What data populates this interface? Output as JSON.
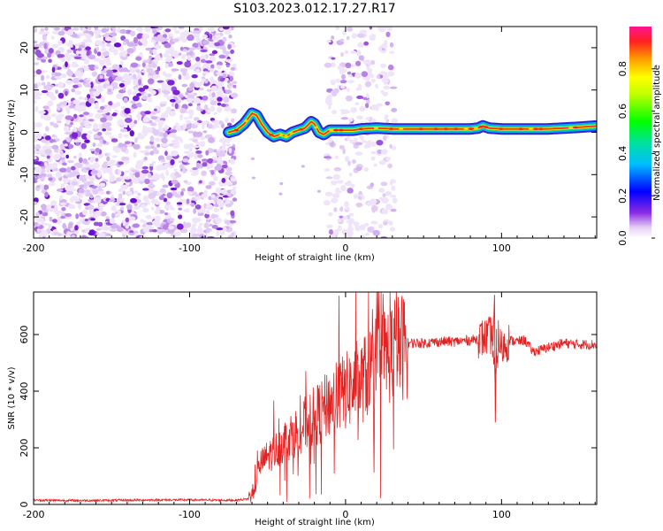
{
  "title": "S103.2023.012.17.27.R17",
  "chart_data": [
    {
      "type": "heatmap",
      "name": "spectrogram",
      "xlabel": "Height of straight line (km)",
      "ylabel": "Frequency (Hz)",
      "xlim": [
        -200,
        161
      ],
      "ylim": [
        -25,
        25
      ],
      "xticks": [
        -200,
        -100,
        0,
        100
      ],
      "yticks": [
        -20,
        -10,
        0,
        10,
        20
      ],
      "colorbar": {
        "label": "Normalized spectral amplitude",
        "range": [
          0,
          1
        ],
        "ticks": [
          0.0,
          0.2,
          0.4,
          0.6,
          0.8
        ],
        "tick_labels": [
          "0.0",
          "0.2",
          "0.4",
          "0.6",
          "0.8"
        ]
      },
      "noise_regions": [
        {
          "x_range": [
            -200,
            -71
          ],
          "density": "dense"
        },
        {
          "x_range": [
            -12,
            32
          ],
          "density": "moderate"
        }
      ],
      "signal_trace": {
        "x": [
          -75,
          -70,
          -65,
          -60,
          -57,
          -54,
          -50,
          -46,
          -42,
          -38,
          -34,
          -30,
          -26,
          -22,
          -20,
          -17,
          -14,
          -10,
          -5,
          0,
          5,
          10,
          20,
          30,
          40,
          50,
          60,
          70,
          80,
          85,
          88,
          92,
          100,
          110,
          120,
          130,
          140,
          150,
          161
        ],
        "y": [
          0,
          0.5,
          2,
          4.5,
          4,
          2,
          0,
          -1,
          -0.5,
          -1,
          0,
          0.5,
          1,
          2.5,
          2,
          0,
          -0.5,
          0.5,
          0.5,
          0.5,
          0.5,
          0.8,
          1,
          0.8,
          0.8,
          0.8,
          0.8,
          0.8,
          0.8,
          1,
          1.5,
          1,
          0.8,
          0.8,
          0.8,
          0.8,
          1,
          1.2,
          1.5
        ]
      }
    },
    {
      "type": "line",
      "name": "snr",
      "xlabel": "Height of straight line (km)",
      "ylabel": "SNR (10 * v/v)",
      "xlim": [
        -200,
        161
      ],
      "ylim": [
        0,
        750
      ],
      "xticks": [
        -200,
        -100,
        0,
        100
      ],
      "yticks": [
        0,
        200,
        400,
        600
      ],
      "color": "#e32222",
      "series": [
        {
          "name": "SNR",
          "x": [
            -200,
            -180,
            -160,
            -140,
            -120,
            -100,
            -80,
            -70,
            -62,
            -58,
            -55,
            -50,
            -45,
            -40,
            -35,
            -30,
            -25,
            -20,
            -15,
            -10,
            -5,
            0,
            5,
            10,
            15,
            20,
            25,
            30,
            35,
            40,
            50,
            60,
            70,
            80,
            90,
            94,
            96,
            98,
            100,
            105,
            110,
            115,
            120,
            125,
            130,
            140,
            150,
            161
          ],
          "y": [
            15,
            14,
            14,
            15,
            16,
            16,
            15,
            15,
            20,
            60,
            140,
            170,
            190,
            220,
            245,
            260,
            290,
            310,
            330,
            360,
            380,
            400,
            415,
            430,
            470,
            500,
            525,
            545,
            555,
            570,
            570,
            575,
            575,
            580,
            590,
            600,
            420,
            590,
            550,
            580,
            575,
            580,
            540,
            545,
            555,
            570,
            565,
            565
          ]
        }
      ],
      "annotations": {
        "peak": {
          "x": 96,
          "y": 740
        },
        "dip": {
          "x": 96,
          "y": 290
        }
      }
    }
  ]
}
